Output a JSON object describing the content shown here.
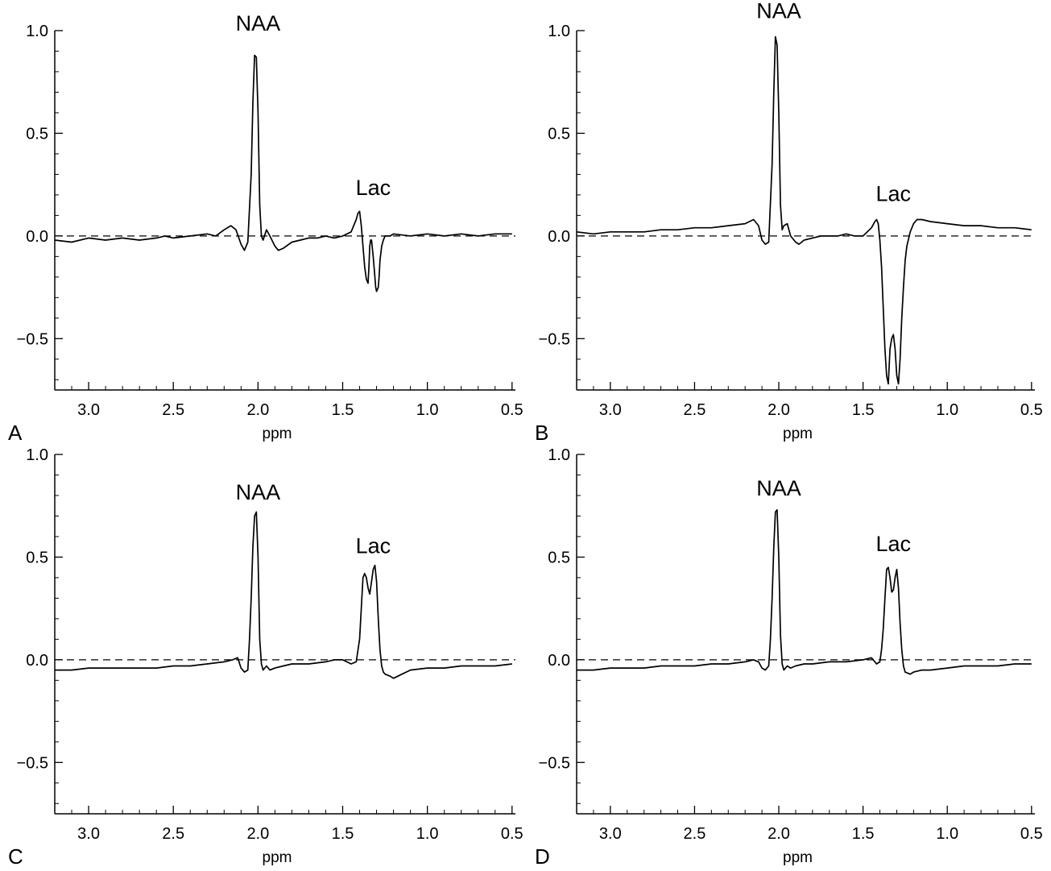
{
  "figure": {
    "x_axis_label": "ppm",
    "panels": [
      "A",
      "B",
      "C",
      "D"
    ]
  },
  "chart_data": [
    {
      "type": "line",
      "panel_label": "A",
      "xlabel": "ppm",
      "ylabel": "",
      "xlim": [
        3.2,
        0.48
      ],
      "ylim": [
        -0.75,
        1.0
      ],
      "x_ticks": [
        "3.0",
        "2.5",
        "2.0",
        "1.5",
        "1.0",
        "0.5"
      ],
      "y_ticks": [
        "1.0",
        "0.5",
        "0.0",
        "−0.5"
      ],
      "baseline": 0.0,
      "annotations": [
        {
          "text": "NAA",
          "x": 2.0,
          "y": 1.0
        },
        {
          "text": "Lac",
          "x": 1.32,
          "y": 0.2
        }
      ],
      "series": [
        {
          "x": [
            3.2,
            3.1,
            3.0,
            2.9,
            2.8,
            2.7,
            2.6,
            2.55,
            2.5,
            2.4,
            2.3,
            2.25,
            2.2,
            2.16,
            2.13,
            2.1,
            2.08,
            2.06,
            2.04,
            2.03,
            2.02,
            2.01,
            2.0,
            1.99,
            1.98,
            1.97,
            1.95,
            1.93,
            1.9,
            1.88,
            1.85,
            1.8,
            1.75,
            1.7,
            1.65,
            1.6,
            1.55,
            1.5,
            1.45,
            1.42,
            1.41,
            1.4,
            1.39,
            1.38,
            1.37,
            1.36,
            1.35,
            1.345,
            1.34,
            1.335,
            1.33,
            1.32,
            1.31,
            1.305,
            1.3,
            1.29,
            1.285,
            1.28,
            1.27,
            1.26,
            1.25,
            1.22,
            1.2,
            1.1,
            1.0,
            0.9,
            0.8,
            0.7,
            0.6,
            0.5
          ],
          "y": [
            -0.02,
            -0.03,
            -0.01,
            -0.02,
            -0.01,
            -0.02,
            -0.01,
            0.0,
            -0.01,
            0.0,
            0.01,
            0.0,
            0.03,
            0.05,
            0.03,
            -0.04,
            -0.07,
            -0.03,
            0.3,
            0.65,
            0.88,
            0.87,
            0.6,
            0.15,
            0.0,
            -0.02,
            0.03,
            0.0,
            -0.05,
            -0.07,
            -0.06,
            -0.03,
            -0.02,
            -0.01,
            -0.01,
            0.0,
            -0.01,
            0.0,
            0.02,
            0.08,
            0.11,
            0.12,
            0.05,
            -0.05,
            -0.15,
            -0.21,
            -0.23,
            -0.15,
            -0.05,
            -0.02,
            -0.02,
            -0.1,
            -0.2,
            -0.25,
            -0.27,
            -0.25,
            -0.2,
            -0.12,
            -0.05,
            -0.02,
            0.0,
            0.0,
            0.01,
            0.0,
            0.01,
            0.0,
            0.01,
            0.0,
            0.01,
            0.01
          ]
        }
      ]
    },
    {
      "type": "line",
      "panel_label": "B",
      "xlabel": "ppm",
      "ylabel": "",
      "xlim": [
        3.2,
        0.48
      ],
      "ylim": [
        -0.75,
        1.0
      ],
      "x_ticks": [
        "3.0",
        "2.5",
        "2.0",
        "1.5",
        "1.0",
        "0.5"
      ],
      "y_ticks": [
        "1.0",
        "0.5",
        "0.0",
        "−0.5"
      ],
      "baseline": 0.0,
      "annotations": [
        {
          "text": "NAA",
          "x": 2.0,
          "y": 1.06
        },
        {
          "text": "Lac",
          "x": 1.32,
          "y": 0.17
        }
      ],
      "series": [
        {
          "x": [
            3.2,
            3.1,
            3.0,
            2.9,
            2.8,
            2.7,
            2.6,
            2.5,
            2.4,
            2.3,
            2.2,
            2.15,
            2.12,
            2.1,
            2.08,
            2.06,
            2.04,
            2.03,
            2.02,
            2.01,
            2.0,
            1.99,
            1.98,
            1.97,
            1.95,
            1.93,
            1.9,
            1.88,
            1.85,
            1.8,
            1.75,
            1.7,
            1.65,
            1.6,
            1.55,
            1.5,
            1.45,
            1.43,
            1.42,
            1.41,
            1.4,
            1.39,
            1.38,
            1.37,
            1.36,
            1.35,
            1.34,
            1.33,
            1.32,
            1.31,
            1.3,
            1.29,
            1.28,
            1.27,
            1.26,
            1.25,
            1.24,
            1.22,
            1.2,
            1.18,
            1.15,
            1.1,
            1.0,
            0.9,
            0.8,
            0.7,
            0.6,
            0.5
          ],
          "y": [
            0.02,
            0.01,
            0.02,
            0.02,
            0.02,
            0.03,
            0.03,
            0.04,
            0.04,
            0.05,
            0.06,
            0.08,
            0.05,
            -0.02,
            -0.04,
            -0.03,
            0.35,
            0.7,
            0.97,
            0.93,
            0.6,
            0.15,
            0.03,
            0.05,
            0.06,
            0.0,
            -0.03,
            -0.04,
            -0.02,
            -0.01,
            0.0,
            0.0,
            0.0,
            0.01,
            0.0,
            0.0,
            0.04,
            0.07,
            0.08,
            0.06,
            -0.02,
            -0.15,
            -0.35,
            -0.55,
            -0.68,
            -0.72,
            -0.55,
            -0.5,
            -0.48,
            -0.55,
            -0.68,
            -0.72,
            -0.6,
            -0.4,
            -0.25,
            -0.12,
            -0.05,
            0.02,
            0.06,
            0.08,
            0.08,
            0.07,
            0.06,
            0.05,
            0.05,
            0.04,
            0.04,
            0.03
          ]
        }
      ]
    },
    {
      "type": "line",
      "panel_label": "C",
      "xlabel": "ppm",
      "ylabel": "",
      "xlim": [
        3.2,
        0.48
      ],
      "ylim": [
        -0.75,
        1.0
      ],
      "x_ticks": [
        "3.0",
        "2.5",
        "2.0",
        "1.5",
        "1.0",
        "0.5"
      ],
      "y_ticks": [
        "1.0",
        "0.5",
        "0.0",
        "−0.5"
      ],
      "baseline": 0.0,
      "annotations": [
        {
          "text": "NAA",
          "x": 2.0,
          "y": 0.78
        },
        {
          "text": "Lac",
          "x": 1.32,
          "y": 0.52
        }
      ],
      "series": [
        {
          "x": [
            3.2,
            3.1,
            3.0,
            2.9,
            2.8,
            2.7,
            2.6,
            2.5,
            2.4,
            2.3,
            2.2,
            2.15,
            2.12,
            2.1,
            2.08,
            2.06,
            2.05,
            2.04,
            2.03,
            2.02,
            2.01,
            2.0,
            1.99,
            1.98,
            1.97,
            1.95,
            1.93,
            1.9,
            1.85,
            1.8,
            1.7,
            1.6,
            1.55,
            1.5,
            1.45,
            1.42,
            1.4,
            1.39,
            1.38,
            1.37,
            1.36,
            1.35,
            1.34,
            1.33,
            1.32,
            1.31,
            1.3,
            1.29,
            1.28,
            1.27,
            1.26,
            1.25,
            1.22,
            1.2,
            1.15,
            1.1,
            1.0,
            0.9,
            0.8,
            0.7,
            0.6,
            0.5
          ],
          "y": [
            -0.05,
            -0.05,
            -0.04,
            -0.04,
            -0.04,
            -0.04,
            -0.04,
            -0.03,
            -0.03,
            -0.02,
            -0.01,
            0.0,
            0.01,
            -0.04,
            -0.06,
            -0.05,
            0.1,
            0.3,
            0.55,
            0.7,
            0.72,
            0.5,
            0.1,
            -0.02,
            -0.05,
            -0.03,
            -0.05,
            -0.04,
            -0.03,
            -0.02,
            -0.02,
            -0.01,
            0.0,
            0.0,
            -0.02,
            -0.01,
            0.1,
            0.25,
            0.4,
            0.42,
            0.4,
            0.35,
            0.32,
            0.38,
            0.44,
            0.46,
            0.38,
            0.2,
            0.05,
            -0.03,
            -0.06,
            -0.07,
            -0.08,
            -0.09,
            -0.07,
            -0.05,
            -0.04,
            -0.04,
            -0.03,
            -0.03,
            -0.03,
            -0.02
          ]
        }
      ]
    },
    {
      "type": "line",
      "panel_label": "D",
      "xlabel": "ppm",
      "ylabel": "",
      "xlim": [
        3.2,
        0.48
      ],
      "ylim": [
        -0.75,
        1.0
      ],
      "x_ticks": [
        "3.0",
        "2.5",
        "2.0",
        "1.5",
        "1.0",
        "0.5"
      ],
      "y_ticks": [
        "1.0",
        "0.5",
        "0.0",
        "−0.5"
      ],
      "baseline": 0.0,
      "annotations": [
        {
          "text": "NAA",
          "x": 2.0,
          "y": 0.8
        },
        {
          "text": "Lac",
          "x": 1.32,
          "y": 0.53
        }
      ],
      "series": [
        {
          "x": [
            3.2,
            3.1,
            3.0,
            2.9,
            2.8,
            2.7,
            2.6,
            2.5,
            2.4,
            2.3,
            2.2,
            2.15,
            2.12,
            2.1,
            2.08,
            2.06,
            2.05,
            2.04,
            2.03,
            2.02,
            2.01,
            2.0,
            1.99,
            1.98,
            1.97,
            1.95,
            1.93,
            1.9,
            1.85,
            1.8,
            1.7,
            1.6,
            1.5,
            1.45,
            1.42,
            1.4,
            1.39,
            1.38,
            1.37,
            1.36,
            1.35,
            1.34,
            1.33,
            1.32,
            1.31,
            1.3,
            1.29,
            1.28,
            1.27,
            1.26,
            1.25,
            1.22,
            1.2,
            1.15,
            1.1,
            1.0,
            0.9,
            0.8,
            0.7,
            0.6,
            0.5
          ],
          "y": [
            -0.05,
            -0.05,
            -0.04,
            -0.04,
            -0.04,
            -0.03,
            -0.03,
            -0.03,
            -0.02,
            -0.02,
            -0.01,
            0.0,
            -0.01,
            -0.04,
            -0.05,
            -0.03,
            0.1,
            0.3,
            0.55,
            0.72,
            0.73,
            0.5,
            0.12,
            -0.02,
            -0.05,
            -0.03,
            -0.04,
            -0.03,
            -0.02,
            -0.02,
            -0.01,
            -0.01,
            0.0,
            0.01,
            -0.02,
            -0.01,
            0.05,
            0.15,
            0.3,
            0.44,
            0.45,
            0.4,
            0.33,
            0.34,
            0.4,
            0.44,
            0.35,
            0.18,
            0.05,
            -0.03,
            -0.06,
            -0.07,
            -0.06,
            -0.05,
            -0.05,
            -0.04,
            -0.03,
            -0.03,
            -0.03,
            -0.02,
            -0.02
          ]
        }
      ]
    }
  ]
}
